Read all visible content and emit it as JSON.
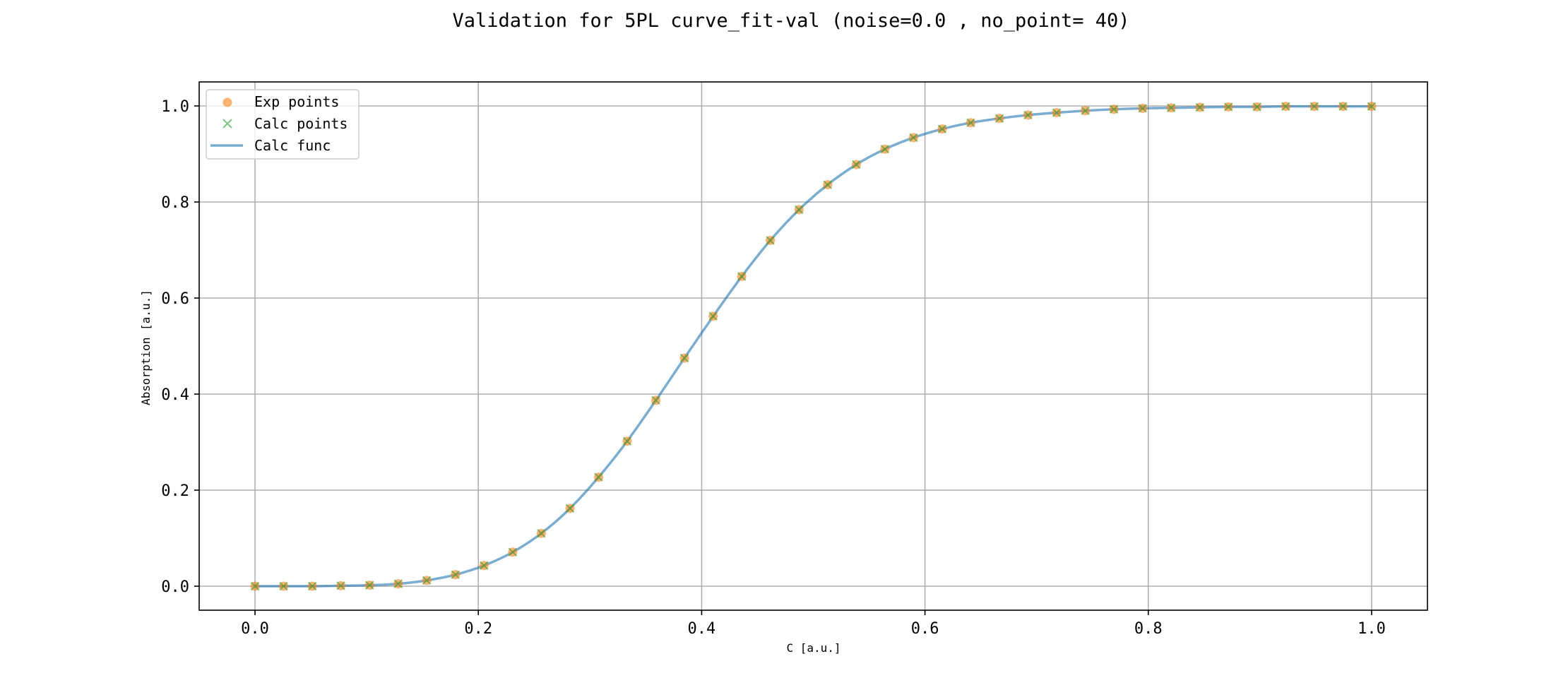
{
  "chart_data": {
    "type": "scatter",
    "title": "Validation for 5PL curve_fit-val (noise=0.0 , no_point= 40)",
    "xlabel": "C [a.u.]",
    "ylabel": "Absorption [a.u.]",
    "xlim": [
      -0.05,
      1.05
    ],
    "ylim": [
      -0.05,
      1.05
    ],
    "xticks": [
      "0.0",
      "0.2",
      "0.4",
      "0.6",
      "0.8",
      "1.0"
    ],
    "yticks": [
      "0.0",
      "0.2",
      "0.4",
      "0.6",
      "0.8",
      "1.0"
    ],
    "grid": true,
    "legend_position": "top-left",
    "x": [
      0.0,
      0.0256,
      0.0513,
      0.0769,
      0.1026,
      0.1282,
      0.1538,
      0.1795,
      0.2051,
      0.2308,
      0.2564,
      0.2821,
      0.3077,
      0.3333,
      0.359,
      0.3846,
      0.4103,
      0.4359,
      0.4615,
      0.4872,
      0.5128,
      0.5385,
      0.5641,
      0.5897,
      0.6154,
      0.641,
      0.6667,
      0.6923,
      0.7179,
      0.7436,
      0.7692,
      0.7949,
      0.8205,
      0.8462,
      0.8718,
      0.8974,
      0.9231,
      0.9487,
      0.9744,
      1.0
    ],
    "series": [
      {
        "name": "Exp points",
        "marker": "circle",
        "color": "#ff7f0e",
        "y": [
          0.0,
          0.0,
          0.0,
          0.001,
          0.002,
          0.005,
          0.012,
          0.024,
          0.043,
          0.071,
          0.11,
          0.162,
          0.227,
          0.302,
          0.387,
          0.475,
          0.562,
          0.645,
          0.72,
          0.784,
          0.836,
          0.878,
          0.91,
          0.934,
          0.952,
          0.965,
          0.974,
          0.981,
          0.986,
          0.99,
          0.993,
          0.995,
          0.996,
          0.997,
          0.998,
          0.998,
          0.999,
          0.999,
          0.999,
          0.999
        ]
      },
      {
        "name": "Calc points",
        "marker": "x",
        "color": "#2ca02c",
        "y": [
          0.0,
          0.0,
          0.0,
          0.001,
          0.002,
          0.005,
          0.012,
          0.024,
          0.043,
          0.071,
          0.11,
          0.162,
          0.227,
          0.302,
          0.387,
          0.475,
          0.562,
          0.645,
          0.72,
          0.784,
          0.836,
          0.878,
          0.91,
          0.934,
          0.952,
          0.965,
          0.974,
          0.981,
          0.986,
          0.99,
          0.993,
          0.995,
          0.996,
          0.997,
          0.998,
          0.998,
          0.999,
          0.999,
          0.999,
          0.999
        ]
      },
      {
        "name": "Calc func",
        "marker": "line",
        "color": "#1f77b4"
      }
    ]
  }
}
